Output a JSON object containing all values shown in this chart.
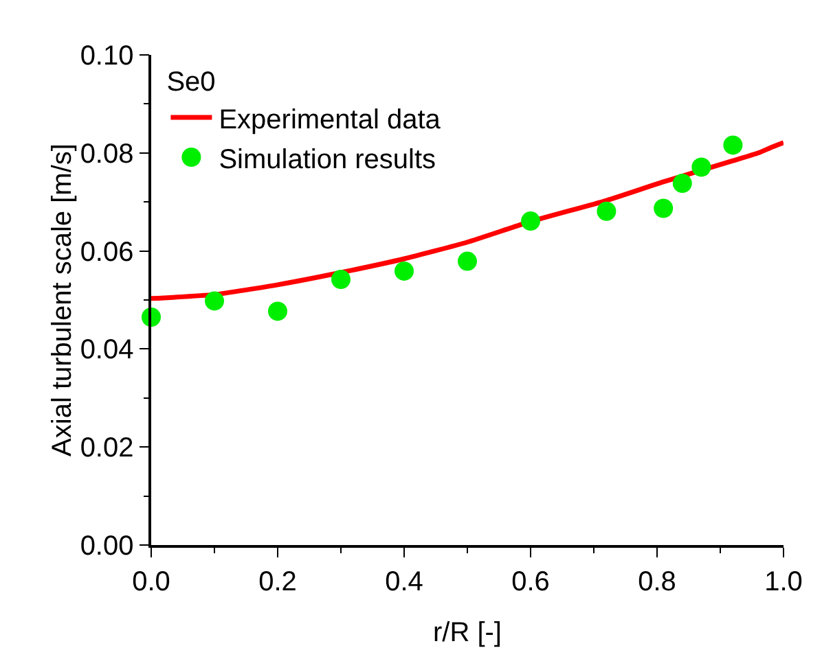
{
  "chart_data": {
    "type": "line",
    "xlabel": "r/R [-]",
    "ylabel": "Axial turbulent scale [m/s]",
    "legend_title": "Se0",
    "legend": "top left",
    "grid": false,
    "xlim": [
      0,
      1
    ],
    "xticks": [
      {
        "value": 0,
        "label": "0.0"
      },
      {
        "value": 0.2,
        "label": "0.2"
      },
      {
        "value": 0.4,
        "label": "0.4"
      },
      {
        "value": 0.6,
        "label": "0.6"
      },
      {
        "value": 0.8,
        "label": "0.8"
      },
      {
        "value": 1,
        "label": "1.0"
      }
    ],
    "ylim": [
      0,
      0.1
    ],
    "yticks": [
      {
        "value": 0,
        "label": "0.00"
      },
      {
        "value": 0.02,
        "label": "0.02"
      },
      {
        "value": 0.04,
        "label": "0.04"
      },
      {
        "value": 0.06,
        "label": "0.06"
      },
      {
        "value": 0.08,
        "label": "0.08"
      },
      {
        "value": 0.1,
        "label": "0.10"
      }
    ],
    "series": [
      {
        "name": "Experimental data",
        "color": "#ff0000",
        "marker": "none",
        "line_style": "solid",
        "x": [
          0,
          0.1,
          0.2,
          0.3,
          0.4,
          0.5,
          0.6,
          0.72,
          0.81,
          0.92,
          0.96,
          0.98,
          1.0
        ],
        "values": [
          0.0503,
          0.0511,
          0.0531,
          0.0556,
          0.0584,
          0.0618,
          0.066,
          0.0703,
          0.0741,
          0.0784,
          0.08,
          0.0811,
          0.0821
        ]
      },
      {
        "name": "Simulation results",
        "type": "scatter",
        "color": "#00ee00",
        "marker": "circle",
        "x": [
          0,
          0.1,
          0.2,
          0.3,
          0.4,
          0.5,
          0.6,
          0.72,
          0.81,
          0.84,
          0.87,
          0.92
        ],
        "values": [
          0.0465,
          0.0498,
          0.0477,
          0.0542,
          0.0559,
          0.0579,
          0.0661,
          0.0681,
          0.0687,
          0.0738,
          0.0771,
          0.0816
        ]
      }
    ]
  }
}
